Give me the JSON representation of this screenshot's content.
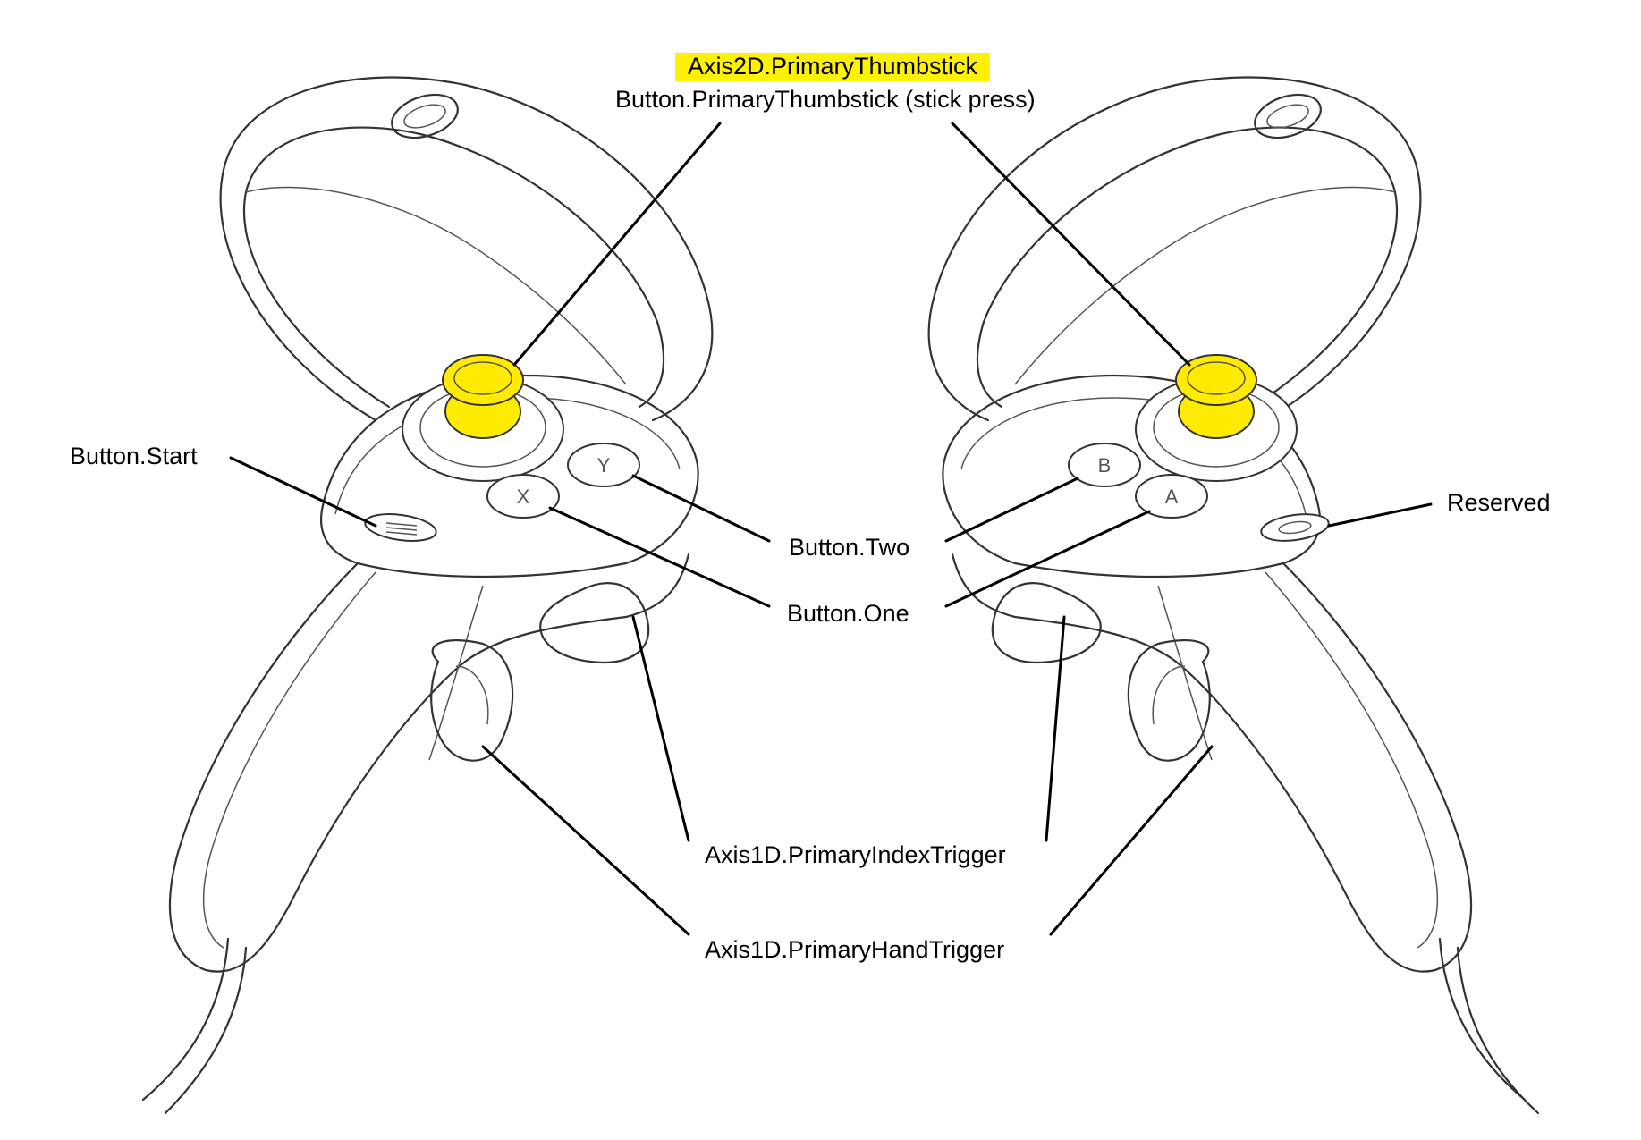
{
  "labels": {
    "axis2d_thumbstick": "Axis2D.PrimaryThumbstick",
    "button_thumbstick": "Button.PrimaryThumbstick (stick press)",
    "button_start": "Button.Start",
    "button_two": "Button.Two",
    "button_one": "Button.One",
    "reserved": "Reserved",
    "index_trigger": "Axis1D.PrimaryIndexTrigger",
    "hand_trigger": "Axis1D.PrimaryHandTrigger"
  },
  "left_controller": {
    "face_buttons": [
      "X",
      "Y"
    ]
  },
  "right_controller": {
    "face_buttons": [
      "A",
      "B"
    ]
  },
  "colors": {
    "highlight": "#fff200",
    "outline": "#333333",
    "leader": "#000000"
  }
}
